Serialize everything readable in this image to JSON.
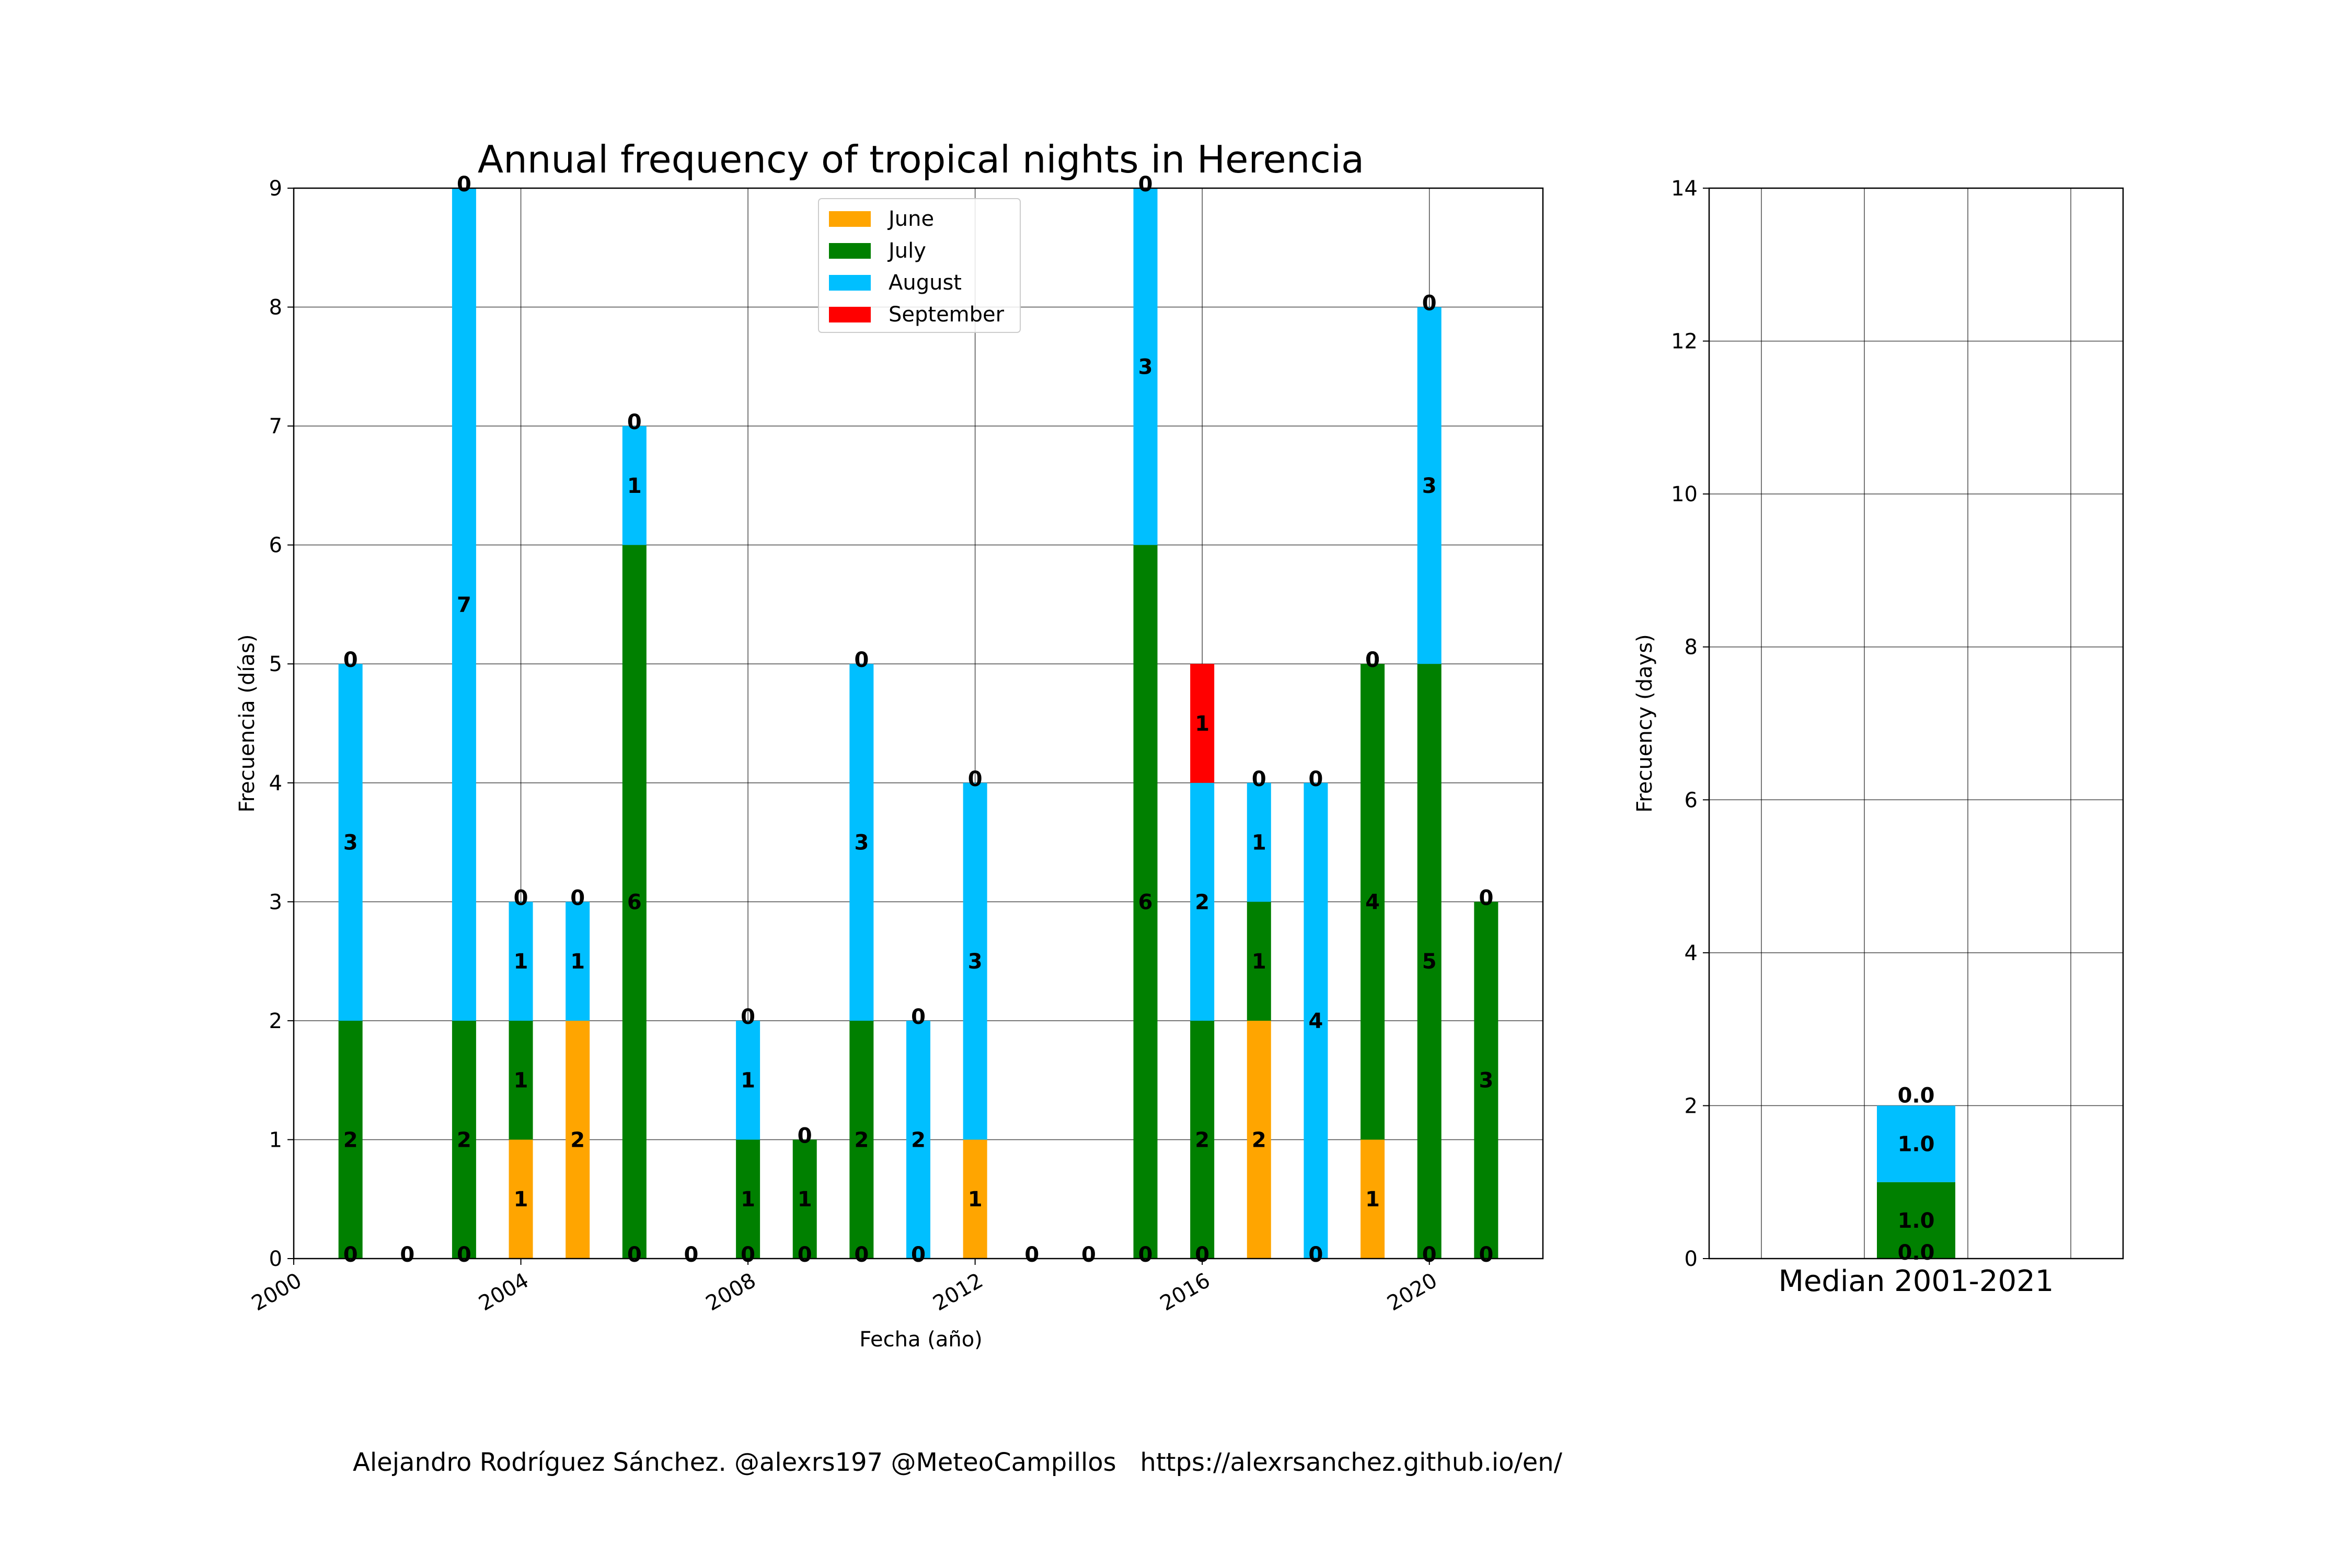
{
  "credit": "Alejandro Rodríguez Sánchez. @alexrs197 @MeteoCampillos   https://alexrsanchez.github.io/en/",
  "chart_data": [
    {
      "type": "bar",
      "stacked": true,
      "title": "Annual frequency of tropical nights in Herencia",
      "xlabel": "Fecha (año)",
      "ylabel": "Frecuencia (días)",
      "xlim": [
        2000,
        2022
      ],
      "ylim": [
        0,
        9
      ],
      "grid": true,
      "legend_position": "top-center",
      "x_ticks": [
        "2000",
        "2004",
        "2008",
        "2012",
        "2016",
        "2020"
      ],
      "y_ticks": [
        "0",
        "1",
        "2",
        "3",
        "4",
        "5",
        "6",
        "7",
        "8",
        "9"
      ],
      "categories": [
        2001,
        2002,
        2003,
        2004,
        2005,
        2006,
        2007,
        2008,
        2009,
        2010,
        2011,
        2012,
        2013,
        2014,
        2015,
        2016,
        2017,
        2018,
        2019,
        2020,
        2021
      ],
      "series": [
        {
          "name": "June",
          "color": "#ffa500",
          "values": [
            0,
            0,
            0,
            1,
            2,
            0,
            0,
            0,
            0,
            0,
            0,
            1,
            0,
            0,
            0,
            0,
            2,
            0,
            1,
            0,
            0
          ]
        },
        {
          "name": "July",
          "color": "#008000",
          "values": [
            2,
            0,
            2,
            1,
            0,
            6,
            0,
            1,
            1,
            2,
            0,
            0,
            0,
            0,
            6,
            2,
            1,
            0,
            4,
            5,
            3
          ]
        },
        {
          "name": "August",
          "color": "#00bfff",
          "values": [
            3,
            0,
            7,
            1,
            1,
            1,
            0,
            1,
            0,
            3,
            2,
            3,
            0,
            0,
            3,
            2,
            1,
            4,
            0,
            3,
            0
          ]
        },
        {
          "name": "September",
          "color": "#ff0000",
          "values": [
            0,
            0,
            0,
            0,
            0,
            0,
            0,
            0,
            0,
            0,
            0,
            0,
            0,
            0,
            0,
            1,
            0,
            0,
            0,
            0,
            0
          ]
        }
      ]
    },
    {
      "type": "bar",
      "stacked": true,
      "title": "",
      "xlabel": "Median 2001-2021",
      "ylabel": "Frecuency (days)",
      "ylim": [
        0,
        14
      ],
      "grid": true,
      "y_ticks": [
        "0",
        "2",
        "4",
        "6",
        "8",
        "10",
        "12",
        "14"
      ],
      "categories": [
        "Median 2001-2021"
      ],
      "series": [
        {
          "name": "June",
          "color": "#ffa500",
          "values": [
            0.0
          ],
          "label": "0.0"
        },
        {
          "name": "July",
          "color": "#008000",
          "values": [
            1.0
          ],
          "label": "1.0"
        },
        {
          "name": "August",
          "color": "#00bfff",
          "values": [
            1.0
          ],
          "label": "1.0"
        },
        {
          "name": "September",
          "color": "#ff0000",
          "values": [
            0.0
          ],
          "label": "0.0"
        }
      ]
    }
  ]
}
